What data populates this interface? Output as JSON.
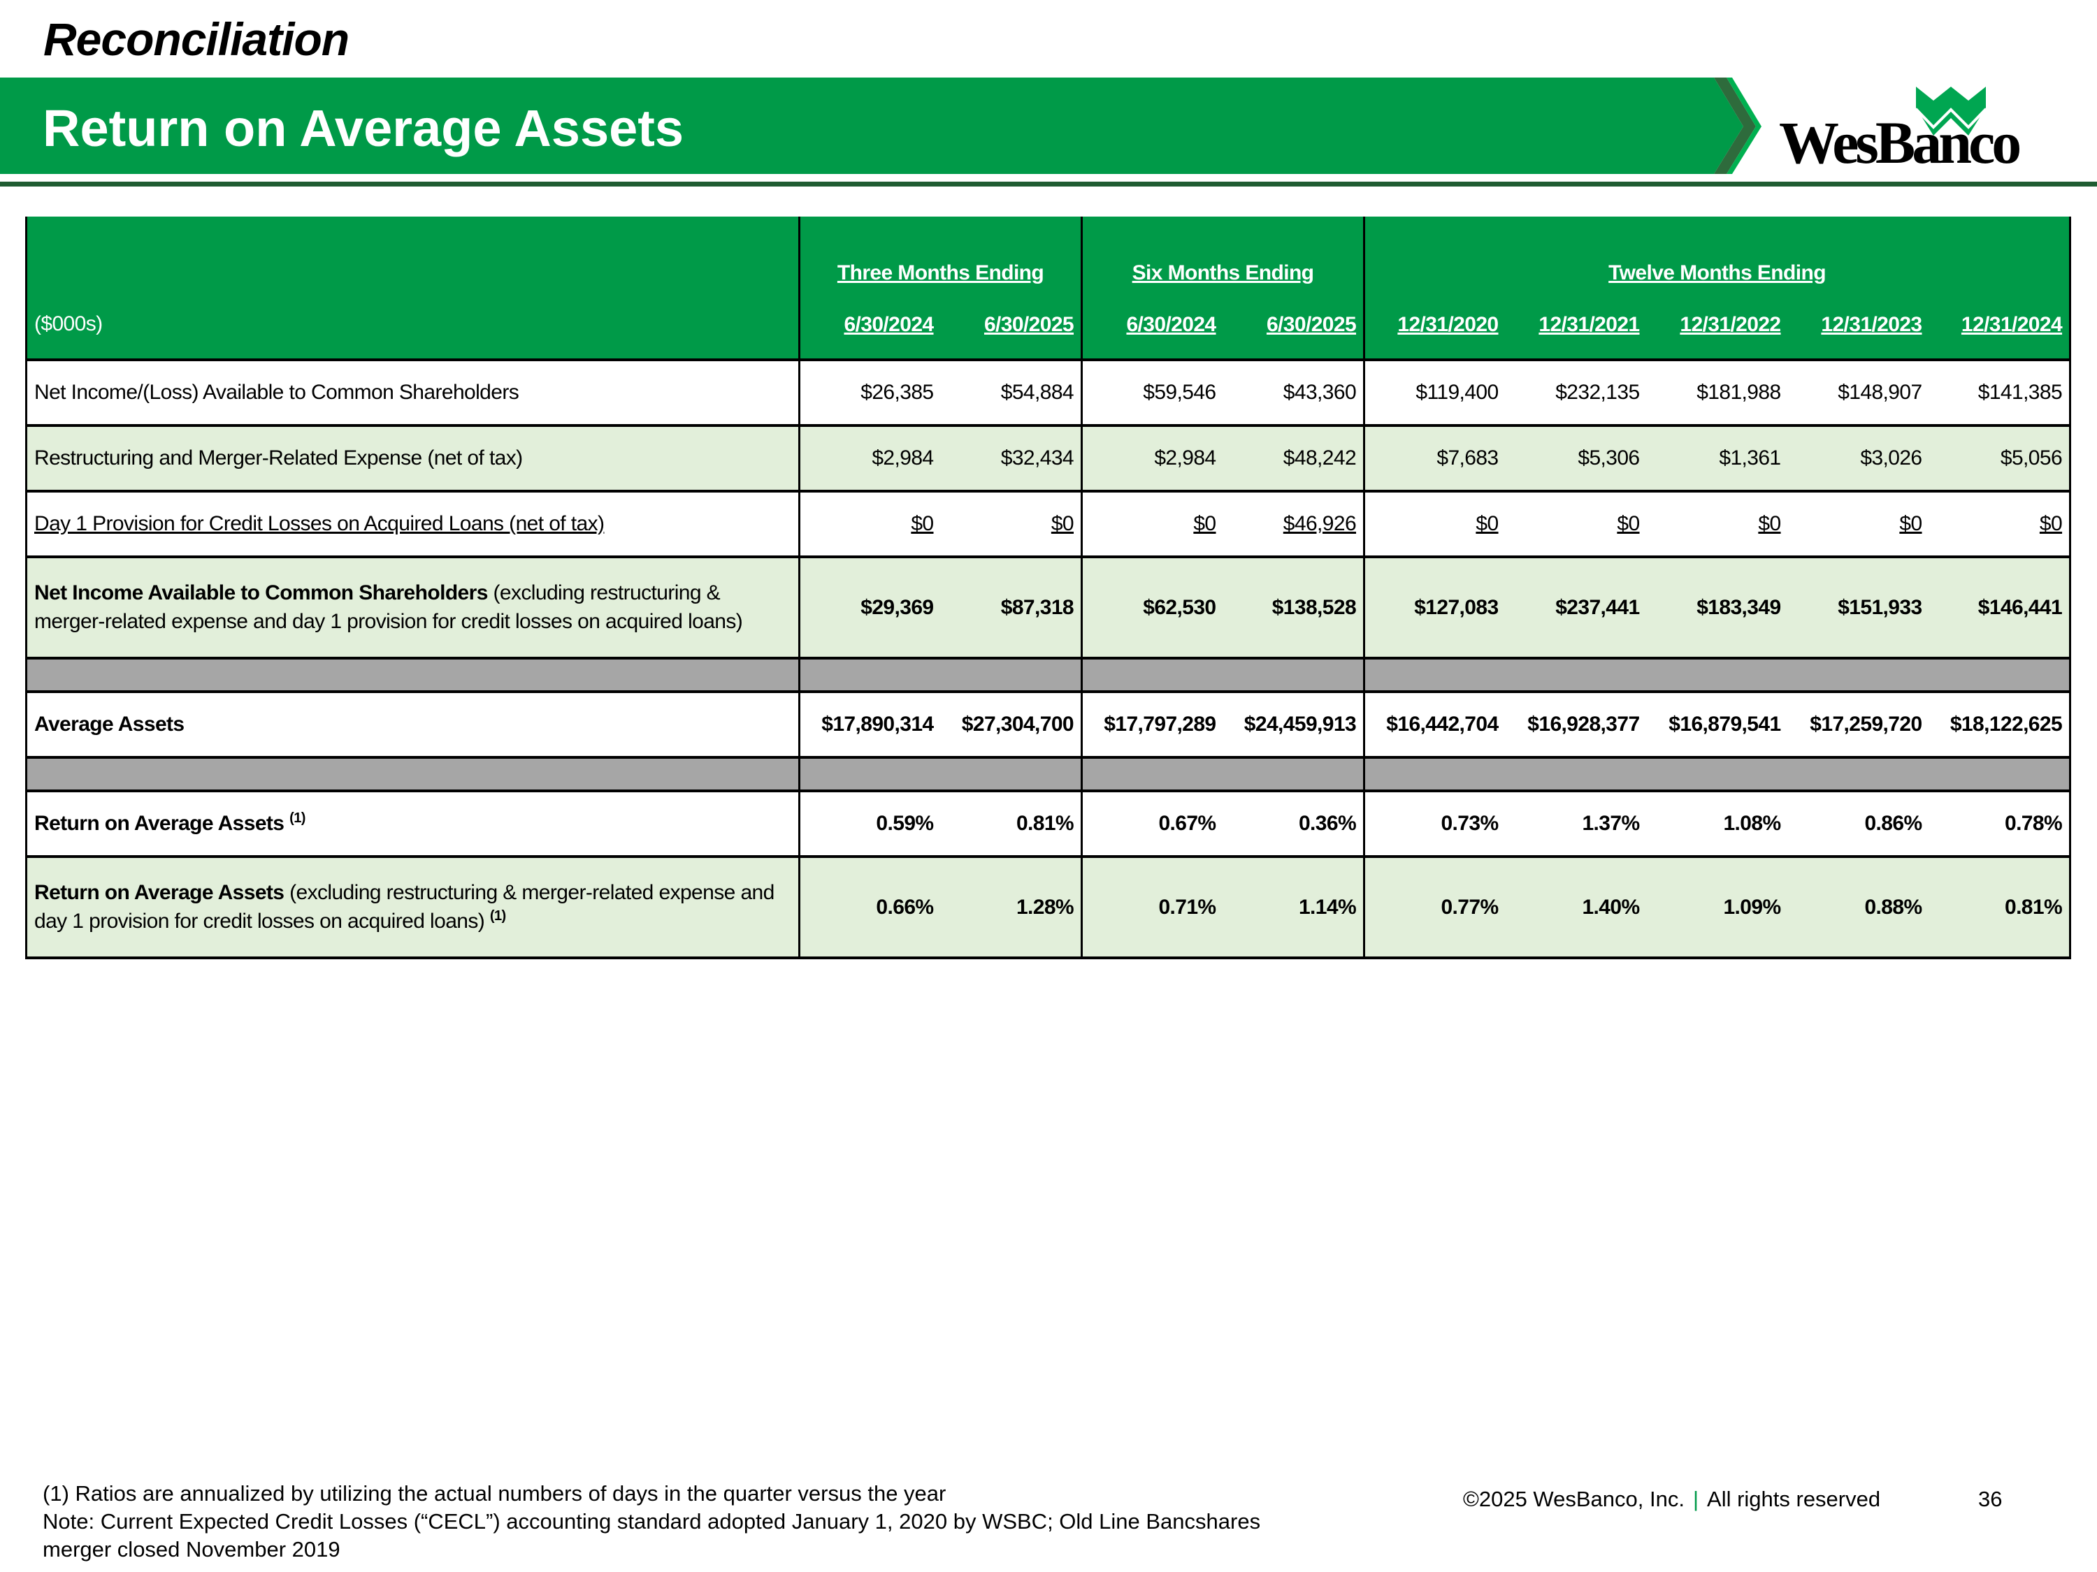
{
  "header": {
    "section": "Reconciliation",
    "title": "Return on Average Assets",
    "logo": "WesBanco"
  },
  "colors": {
    "brand_green": "#009a48",
    "dark_green": "#1f5c32",
    "light_green": "#e2efda",
    "gray": "#a6a6a6"
  },
  "table": {
    "unit_label": "($000s)",
    "groups": [
      {
        "label": "Three Months Ending",
        "span": 2
      },
      {
        "label": "Six Months Ending",
        "span": 2
      },
      {
        "label": "Twelve Months Ending",
        "span": 5
      }
    ],
    "dates": [
      "6/30/2024",
      "6/30/2025",
      "6/30/2024",
      "6/30/2025",
      "12/31/2020",
      "12/31/2021",
      "12/31/2022",
      "12/31/2023",
      "12/31/2024"
    ],
    "rows": [
      {
        "type": "data",
        "shade": "w",
        "label": {
          "bold": "",
          "normal": "Net Income/(Loss) Available to Common Shareholders",
          "sup": ""
        },
        "values": [
          "$26,385",
          "$54,884",
          "$59,546",
          "$43,360",
          "$119,400",
          "$232,135",
          "$181,988",
          "$148,907",
          "$141,385"
        ]
      },
      {
        "type": "data",
        "shade": "g",
        "label": {
          "bold": "",
          "normal": "Restructuring and Merger-Related Expense (net of tax)",
          "sup": ""
        },
        "values": [
          "$2,984",
          "$32,434",
          "$2,984",
          "$48,242",
          "$7,683",
          "$5,306",
          "$1,361",
          "$3,026",
          "$5,056"
        ]
      },
      {
        "type": "data",
        "shade": "w",
        "underline": true,
        "label": {
          "bold": "",
          "normal": "Day 1 Provision for Credit Losses on Acquired Loans (net of tax)",
          "sup": ""
        },
        "values": [
          "$0",
          "$0",
          "$0",
          "$46,926",
          "$0",
          "$0",
          "$0",
          "$0",
          "$0"
        ]
      },
      {
        "type": "data",
        "shade": "g",
        "boldValues": true,
        "tall": true,
        "label": {
          "bold": "Net Income Available to Common Shareholders",
          "normal": " (excluding restructuring & merger-related expense and day 1 provision for credit losses on acquired loans)",
          "sup": ""
        },
        "values": [
          "$29,369",
          "$87,318",
          "$62,530",
          "$138,528",
          "$127,083",
          "$237,441",
          "$183,349",
          "$151,933",
          "$146,441"
        ]
      },
      {
        "type": "gray"
      },
      {
        "type": "data",
        "shade": "w",
        "boldValues": true,
        "label": {
          "bold": "Average Assets",
          "normal": "",
          "sup": ""
        },
        "values": [
          "$17,890,314",
          "$27,304,700",
          "$17,797,289",
          "$24,459,913",
          "$16,442,704",
          "$16,928,377",
          "$16,879,541",
          "$17,259,720",
          "$18,122,625"
        ]
      },
      {
        "type": "gray"
      },
      {
        "type": "data",
        "shade": "w",
        "boldValues": true,
        "label": {
          "bold": "Return on Average Assets",
          "normal": "",
          "sup": "(1)"
        },
        "values": [
          "0.59%",
          "0.81%",
          "0.67%",
          "0.36%",
          "0.73%",
          "1.37%",
          "1.08%",
          "0.86%",
          "0.78%"
        ]
      },
      {
        "type": "data",
        "shade": "g",
        "boldValues": true,
        "tall": true,
        "label": {
          "bold": "Return on Average Assets",
          "normal": " (excluding restructuring & merger-related expense and day 1 provision for credit losses on acquired loans)",
          "sup": "(1)"
        },
        "values": [
          "0.66%",
          "1.28%",
          "0.71%",
          "1.14%",
          "0.77%",
          "1.40%",
          "1.09%",
          "0.88%",
          "0.81%"
        ]
      }
    ]
  },
  "footer": {
    "notes": [
      "(1) Ratios are annualized by utilizing the actual numbers of days in the quarter versus the year",
      "Note: Current Expected Credit Losses (“CECL”) accounting standard adopted January 1, 2020 by WSBC; Old Line Bancshares",
      "merger closed November 2019"
    ],
    "copyright": "©2025 WesBanco, Inc.",
    "divider": "|",
    "rights": "All rights reserved",
    "page": "36"
  }
}
